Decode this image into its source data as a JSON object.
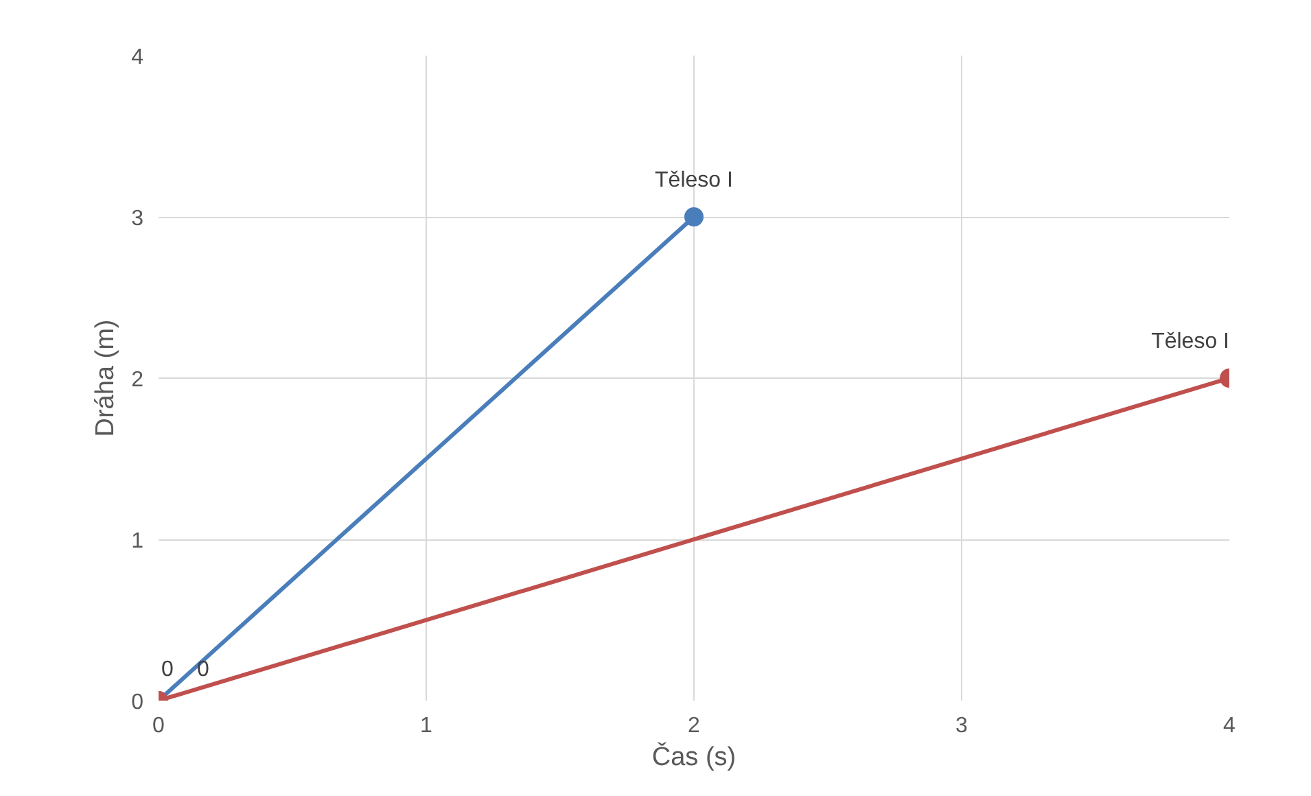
{
  "chart_data": {
    "type": "line",
    "xlabel": "Čas (s)",
    "ylabel": "Dráha (m)",
    "xlim": [
      0,
      4
    ],
    "ylim": [
      0,
      4
    ],
    "xticks": [
      0,
      1,
      2,
      3,
      4
    ],
    "yticks": [
      0,
      1,
      2,
      3,
      4
    ],
    "grid": true,
    "marker": "circle",
    "line_style": "solid",
    "series": [
      {
        "color": "#4a7ebb",
        "x": [
          0,
          2
        ],
        "values": [
          0,
          3
        ],
        "value_labels": [
          "0",
          "Těleso I"
        ]
      },
      {
        "color": "#c0504d",
        "x": [
          0,
          4
        ],
        "values": [
          0,
          2
        ],
        "value_labels": [
          "0",
          "Těleso I"
        ]
      }
    ]
  }
}
